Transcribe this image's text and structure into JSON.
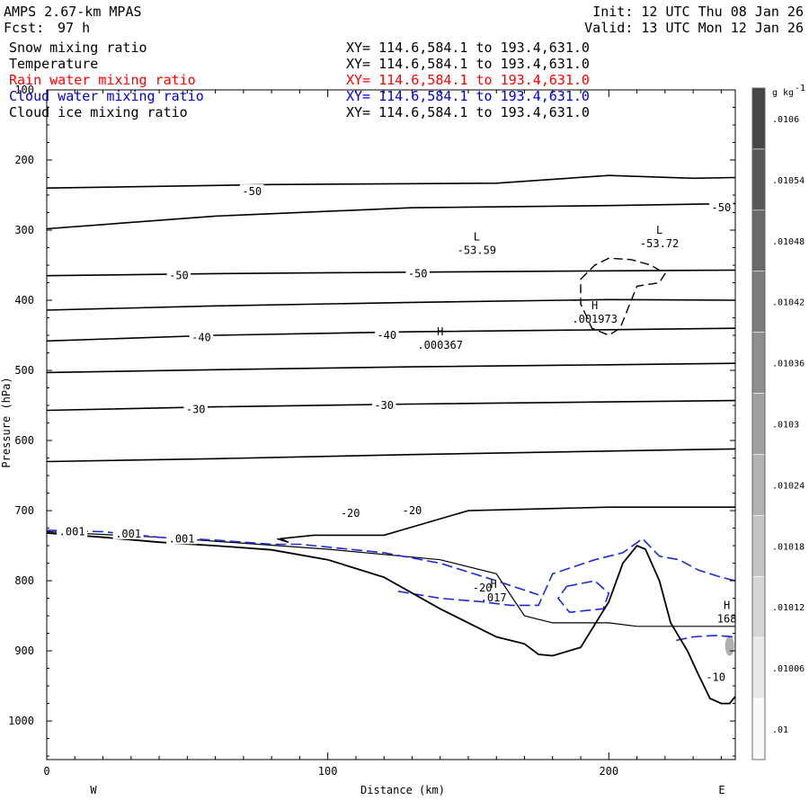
{
  "header": {
    "model": "AMPS 2.67-km MPAS",
    "fcst_label": "Fcst:",
    "fcst_value": "97 h",
    "init": "Init: 12 UTC Thu 08 Jan 26",
    "valid": "Valid: 13 UTC Mon 12 Jan 26"
  },
  "legend": [
    {
      "name": "Snow mixing ratio",
      "xy": "XY= 114.6,584.1 to 193.4,631.0",
      "color": "#000000"
    },
    {
      "name": "Temperature",
      "xy": "XY= 114.6,584.1 to 193.4,631.0",
      "color": "#000000"
    },
    {
      "name": "Rain water mixing ratio",
      "xy": "XY= 114.6,584.1 to 193.4,631.0",
      "color": "#ff0000"
    },
    {
      "name": "Cloud water mixing ratio",
      "xy": "XY= 114.6,584.1 to 193.4,631.0",
      "color": "#0000cc"
    },
    {
      "name": "Cloud ice mixing ratio",
      "xy": "XY= 114.6,584.1 to 193.4,631.0",
      "color": "#000000"
    }
  ],
  "chart_data": {
    "type": "cross-section",
    "xlabel": "Distance (km)",
    "ylabel": "Pressure (hPa)",
    "xlim": [
      0,
      245
    ],
    "ylim": [
      1055,
      100
    ],
    "x_ticks": [
      0,
      100,
      200
    ],
    "y_ticks": [
      100,
      200,
      300,
      400,
      500,
      600,
      700,
      800,
      900,
      1000
    ],
    "endpoints": {
      "left": "W",
      "right": "E"
    },
    "colorbar": {
      "unit": "g kg",
      "unit_exp": "-1",
      "levels": [
        ".0106",
        ".01054",
        ".01048",
        ".01042",
        ".01036",
        ".0103",
        ".01024",
        ".01018",
        ".01012",
        ".01006",
        ".01"
      ]
    },
    "isotherms": [
      {
        "p": [
          240,
          235,
          233,
          222,
          226,
          225
        ],
        "x": [
          0,
          80,
          160,
          200,
          230,
          245
        ]
      },
      {
        "p": [
          298,
          280,
          268,
          265,
          262
        ],
        "x": [
          0,
          60,
          130,
          200,
          245
        ]
      },
      {
        "p": [
          365,
          362,
          360,
          358,
          357
        ],
        "x": [
          0,
          60,
          130,
          200,
          245
        ]
      },
      {
        "p": [
          414,
          408,
          403,
          399,
          400
        ],
        "x": [
          0,
          60,
          130,
          200,
          245
        ]
      },
      {
        "p": [
          458,
          450,
          445,
          442,
          440
        ],
        "x": [
          0,
          60,
          130,
          200,
          245
        ]
      },
      {
        "p": [
          503,
          499,
          495,
          492,
          490
        ],
        "x": [
          0,
          60,
          130,
          200,
          245
        ]
      },
      {
        "p": [
          557,
          552,
          548,
          545,
          543
        ],
        "x": [
          0,
          60,
          130,
          200,
          245
        ]
      },
      {
        "p": [
          630,
          626,
          620,
          615,
          612
        ],
        "x": [
          0,
          60,
          130,
          200,
          245
        ]
      },
      {
        "p": [
          740,
          745,
          740,
          735,
          735,
          700,
          695,
          695
        ],
        "x": [
          82,
          86,
          83,
          95,
          120,
          150,
          200,
          245
        ]
      }
    ],
    "contour_labels": [
      {
        "text": "-50",
        "x": 73,
        "p": 245
      },
      {
        "text": "-50",
        "x": 240,
        "p": 268
      },
      {
        "text": "-50",
        "x": 47,
        "p": 365
      },
      {
        "text": "-50",
        "x": 132,
        "p": 362
      },
      {
        "text": "-40",
        "x": 55,
        "p": 453
      },
      {
        "text": "-40",
        "x": 121,
        "p": 450
      },
      {
        "text": "-30",
        "x": 53,
        "p": 556
      },
      {
        "text": "-30",
        "x": 120,
        "p": 550
      },
      {
        "text": "-20",
        "x": 108,
        "p": 704
      },
      {
        "text": "-20",
        "x": 130,
        "p": 700
      },
      {
        "text": "-10",
        "x": 238,
        "p": 938
      },
      {
        "text": "-20",
        "x": 155,
        "p": 810
      },
      {
        "text": ".001",
        "x": 9,
        "p": 730
      },
      {
        "text": ".001",
        "x": 29,
        "p": 733
      },
      {
        "text": ".001",
        "x": 48,
        "p": 740
      }
    ],
    "extrema": [
      {
        "type": "L",
        "value": "-53.59",
        "x": 153,
        "p": 315
      },
      {
        "type": "L",
        "value": "-53.72",
        "x": 218,
        "p": 305
      },
      {
        "type": "H",
        "value": ".001973",
        "x": 195,
        "p": 413
      },
      {
        "type": "H",
        "value": ".000367",
        "x": 140,
        "p": 450
      },
      {
        "type": "H",
        "value": ".017",
        "x": 159,
        "p": 810
      },
      {
        "type": "H",
        "value": "168",
        "x": 242,
        "p": 840
      }
    ],
    "terrain": {
      "x": [
        0,
        20,
        40,
        60,
        80,
        100,
        120,
        140,
        160,
        170,
        175,
        180,
        190,
        200,
        205,
        210,
        213,
        218,
        222,
        228,
        232,
        236,
        240,
        243,
        245
      ],
      "p": [
        732,
        738,
        745,
        750,
        756,
        770,
        795,
        840,
        880,
        890,
        905,
        907,
        895,
        830,
        775,
        750,
        755,
        800,
        860,
        900,
        935,
        968,
        975,
        975,
        965
      ]
    },
    "cloud_water": [
      {
        "x": [
          0,
          20,
          40,
          60,
          80,
          90,
          100,
          120,
          140,
          160,
          175
        ],
        "p": [
          728,
          730,
          738,
          742,
          748,
          748,
          752,
          760,
          775,
          800,
          820
        ]
      },
      {
        "x": [
          125,
          140,
          155,
          165,
          175,
          180,
          195,
          205,
          212,
          218,
          225,
          232,
          240,
          245
        ],
        "p": [
          815,
          825,
          830,
          835,
          835,
          790,
          770,
          760,
          740,
          765,
          770,
          785,
          795,
          800
        ]
      },
      {
        "x": [
          185,
          195,
          200,
          198,
          186,
          182,
          185
        ],
        "p": [
          808,
          800,
          818,
          840,
          845,
          825,
          808
        ]
      },
      {
        "x": [
          224,
          230,
          238,
          245
        ],
        "p": [
          885,
          880,
          878,
          880
        ]
      }
    ],
    "cloud_ice": [
      {
        "x": [
          190,
          195,
          200,
          208,
          215,
          220,
          218,
          210,
          204,
          200,
          194,
          190,
          190
        ],
        "p": [
          370,
          350,
          340,
          342,
          350,
          362,
          375,
          380,
          440,
          450,
          440,
          405,
          370
        ]
      }
    ],
    "snow_area": [
      {
        "x": [
          0,
          40,
          100,
          140,
          160,
          170,
          180,
          200,
          210,
          218,
          235,
          245
        ],
        "p": [
          730,
          738,
          755,
          770,
          790,
          850,
          860,
          860,
          865,
          865,
          865,
          865
        ]
      }
    ]
  }
}
